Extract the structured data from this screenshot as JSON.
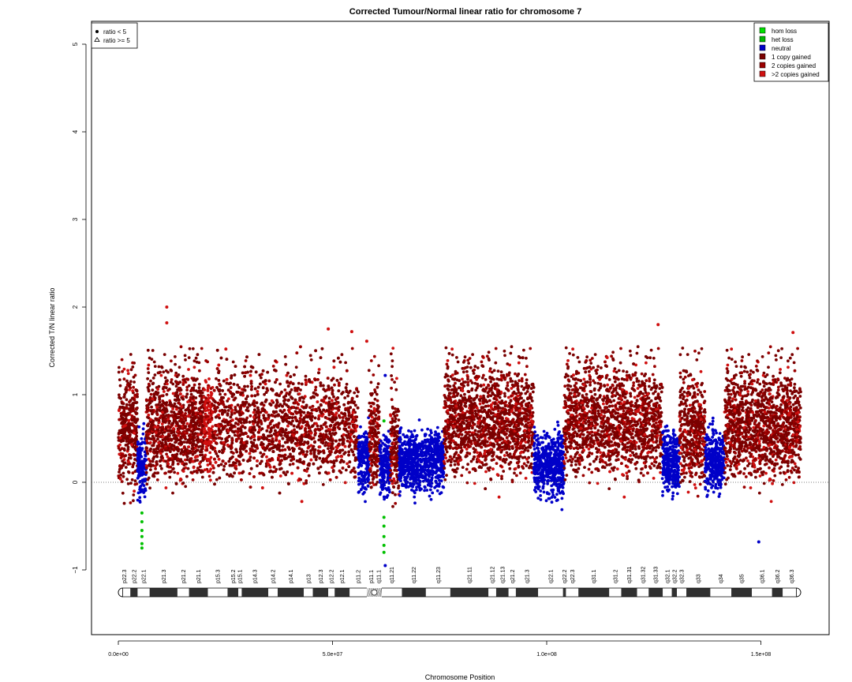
{
  "chart_data": {
    "type": "scatter",
    "title": "Corrected Tumour/Normal linear ratio for chromosome  7",
    "xlabel": "Chromosome Position",
    "ylabel": "Corrected T/N linear ratio",
    "xlim": [
      0,
      162000000
    ],
    "ylim": [
      -1.8,
      5.25
    ],
    "x_ticks": [
      {
        "value": 0,
        "label": "0.0e+00"
      },
      {
        "value": 50000000,
        "label": "5.0e+07"
      },
      {
        "value": 100000000,
        "label": "1.0e+08"
      },
      {
        "value": 150000000,
        "label": "1.5e+08"
      }
    ],
    "y_ticks": [
      {
        "value": -1,
        "label": "−1"
      },
      {
        "value": 0,
        "label": "0"
      },
      {
        "value": 1,
        "label": "1"
      },
      {
        "value": 2,
        "label": "2"
      },
      {
        "value": 3,
        "label": "3"
      },
      {
        "value": 4,
        "label": "4"
      },
      {
        "value": 5,
        "label": "5"
      }
    ],
    "reference_line": {
      "y": 0,
      "style": "dotted"
    },
    "shape_legend": {
      "placement": "top-left",
      "items": [
        {
          "symbol": "dot",
          "label": "ratio < 5"
        },
        {
          "symbol": "triangle",
          "label": "ratio >= 5"
        }
      ]
    },
    "legend": {
      "placement": "top-right",
      "items": [
        {
          "label": "hom loss",
          "color": "#00e000"
        },
        {
          "label": "het loss",
          "color": "#00b800"
        },
        {
          "label": "neutral",
          "color": "#0000c8"
        },
        {
          "label": "1 copy gained",
          "color": "#7a0000"
        },
        {
          "label": "2 copies gained",
          "color": "#9a0000"
        },
        {
          "label": ">2 copies gained",
          "color": "#d01010"
        }
      ]
    },
    "colors": {
      "loss": "#00c000",
      "neutral": "#0000c8",
      "gain1": "#7a0000",
      "gain2": "#9a0000",
      "gain3": "#d01010"
    },
    "segments": [
      {
        "start": 0,
        "end": 4500000,
        "state": "gain1",
        "mean": 0.55
      },
      {
        "start": 4500000,
        "end": 6500000,
        "state": "neutral",
        "mean": 0.2
      },
      {
        "start": 6500000,
        "end": 20000000,
        "state": "gain1",
        "mean": 0.6
      },
      {
        "start": 20000000,
        "end": 22000000,
        "state": "gain3",
        "mean": 0.65
      },
      {
        "start": 22000000,
        "end": 56000000,
        "state": "gain1",
        "mean": 0.6
      },
      {
        "start": 56000000,
        "end": 58500000,
        "state": "neutral",
        "mean": 0.25
      },
      {
        "start": 58500000,
        "end": 61000000,
        "state": "gain1",
        "mean": 0.5
      },
      {
        "start": 61000000,
        "end": 63500000,
        "state": "neutral",
        "mean": 0.2
      },
      {
        "start": 63500000,
        "end": 65500000,
        "state": "gain1",
        "mean": 0.4
      },
      {
        "start": 65500000,
        "end": 76000000,
        "state": "neutral",
        "mean": 0.25
      },
      {
        "start": 76000000,
        "end": 97000000,
        "state": "gain1",
        "mean": 0.65
      },
      {
        "start": 97000000,
        "end": 104000000,
        "state": "neutral",
        "mean": 0.2
      },
      {
        "start": 104000000,
        "end": 127000000,
        "state": "gain1",
        "mean": 0.65
      },
      {
        "start": 127000000,
        "end": 131000000,
        "state": "neutral",
        "mean": 0.25
      },
      {
        "start": 131000000,
        "end": 137000000,
        "state": "gain1",
        "mean": 0.55
      },
      {
        "start": 137000000,
        "end": 141500000,
        "state": "neutral",
        "mean": 0.25
      },
      {
        "start": 141500000,
        "end": 159300000,
        "state": "gain1",
        "mean": 0.6
      }
    ],
    "loss_points": [
      {
        "x": 5500000,
        "y": -0.35
      },
      {
        "x": 5500000,
        "y": -0.45
      },
      {
        "x": 5500000,
        "y": -0.55
      },
      {
        "x": 5500000,
        "y": -0.62
      },
      {
        "x": 5500000,
        "y": -0.7
      },
      {
        "x": 5500000,
        "y": -0.75
      },
      {
        "x": 62000000,
        "y": -0.4
      },
      {
        "x": 62000000,
        "y": -0.5
      },
      {
        "x": 62000000,
        "y": -0.62
      },
      {
        "x": 62000000,
        "y": -0.72
      },
      {
        "x": 62000000,
        "y": -0.8
      },
      {
        "x": 62000000,
        "y": 0.7
      }
    ],
    "outlier_points": [
      {
        "x": 11300000,
        "y": 2.0
      },
      {
        "x": 11300000,
        "y": 1.82
      },
      {
        "x": 49000000,
        "y": 1.75
      },
      {
        "x": 54500000,
        "y": 1.72
      },
      {
        "x": 58000000,
        "y": 1.61
      },
      {
        "x": 126000000,
        "y": 1.8
      },
      {
        "x": 157500000,
        "y": 1.71
      },
      {
        "x": 149500000,
        "y": -0.68
      },
      {
        "x": 62300000,
        "y": -0.95
      },
      {
        "x": 62300000,
        "y": 1.22
      }
    ],
    "ideogram": {
      "length": 159300000,
      "centromere": [
        58000000,
        61500000
      ],
      "bands": [
        {
          "start": 0,
          "end": 2800000,
          "stain": "gneg",
          "label": "p22.3"
        },
        {
          "start": 2800000,
          "end": 4500000,
          "stain": "gpos",
          "label": "p22.2"
        },
        {
          "start": 4500000,
          "end": 7300000,
          "stain": "gneg",
          "label": "p22.1"
        },
        {
          "start": 7300000,
          "end": 13800000,
          "stain": "gpos",
          "label": "p21.3"
        },
        {
          "start": 13800000,
          "end": 16500000,
          "stain": "gneg",
          "label": "p21.2"
        },
        {
          "start": 16500000,
          "end": 20900000,
          "stain": "gpos",
          "label": "p21.1"
        },
        {
          "start": 20900000,
          "end": 25500000,
          "stain": "gneg",
          "label": "p15.3"
        },
        {
          "start": 25500000,
          "end": 28000000,
          "stain": "gpos",
          "label": "p15.2"
        },
        {
          "start": 28000000,
          "end": 28800000,
          "stain": "gneg",
          "label": "p15.1"
        },
        {
          "start": 28800000,
          "end": 35000000,
          "stain": "gpos",
          "label": "p14.3"
        },
        {
          "start": 35000000,
          "end": 37200000,
          "stain": "gneg",
          "label": "p14.2"
        },
        {
          "start": 37200000,
          "end": 43300000,
          "stain": "gpos",
          "label": "p14.1"
        },
        {
          "start": 43300000,
          "end": 45400000,
          "stain": "gneg",
          "label": "p13"
        },
        {
          "start": 45400000,
          "end": 49000000,
          "stain": "gpos",
          "label": "p12.3"
        },
        {
          "start": 49000000,
          "end": 50500000,
          "stain": "gneg",
          "label": "p12.2"
        },
        {
          "start": 50500000,
          "end": 54000000,
          "stain": "gpos",
          "label": "p12.1"
        },
        {
          "start": 54000000,
          "end": 58000000,
          "stain": "gneg",
          "label": "p11.2"
        },
        {
          "start": 58000000,
          "end": 60000000,
          "stain": "acen",
          "label": "p11.1"
        },
        {
          "start": 60000000,
          "end": 61500000,
          "stain": "acen",
          "label": "q11.1"
        },
        {
          "start": 61500000,
          "end": 66200000,
          "stain": "gneg",
          "label": "q11.21"
        },
        {
          "start": 66200000,
          "end": 71800000,
          "stain": "gpos",
          "label": "q11.22"
        },
        {
          "start": 71800000,
          "end": 77500000,
          "stain": "gneg",
          "label": "q11.23"
        },
        {
          "start": 77500000,
          "end": 86400000,
          "stain": "gpos",
          "label": "q21.11"
        },
        {
          "start": 86400000,
          "end": 88200000,
          "stain": "gneg",
          "label": "q21.12"
        },
        {
          "start": 88200000,
          "end": 91100000,
          "stain": "gpos",
          "label": "q21.13"
        },
        {
          "start": 91100000,
          "end": 92800000,
          "stain": "gneg",
          "label": "q21.2"
        },
        {
          "start": 92800000,
          "end": 98000000,
          "stain": "gpos",
          "label": "q21.3"
        },
        {
          "start": 98000000,
          "end": 103800000,
          "stain": "gneg",
          "label": "q22.1"
        },
        {
          "start": 103800000,
          "end": 104500000,
          "stain": "gpos",
          "label": "q22.2"
        },
        {
          "start": 104500000,
          "end": 107400000,
          "stain": "gneg",
          "label": "q22.3"
        },
        {
          "start": 107400000,
          "end": 114600000,
          "stain": "gpos",
          "label": "q31.1"
        },
        {
          "start": 114600000,
          "end": 117400000,
          "stain": "gneg",
          "label": "q31.2"
        },
        {
          "start": 117400000,
          "end": 121100000,
          "stain": "gpos",
          "label": "q31.31"
        },
        {
          "start": 121100000,
          "end": 123800000,
          "stain": "gneg",
          "label": "q31.32"
        },
        {
          "start": 123800000,
          "end": 127100000,
          "stain": "gpos",
          "label": "q31.33"
        },
        {
          "start": 127100000,
          "end": 129200000,
          "stain": "gneg",
          "label": "q32.1"
        },
        {
          "start": 129200000,
          "end": 130400000,
          "stain": "gpos",
          "label": "q32.2"
        },
        {
          "start": 130400000,
          "end": 132600000,
          "stain": "gneg",
          "label": "q32.3"
        },
        {
          "start": 132600000,
          "end": 138200000,
          "stain": "gpos",
          "label": "q33"
        },
        {
          "start": 138200000,
          "end": 143100000,
          "stain": "gneg",
          "label": "q34"
        },
        {
          "start": 143100000,
          "end": 147900000,
          "stain": "gpos",
          "label": "q35"
        },
        {
          "start": 147900000,
          "end": 152600000,
          "stain": "gneg",
          "label": "q36.1"
        },
        {
          "start": 152600000,
          "end": 155100000,
          "stain": "gpos",
          "label": "q36.2"
        },
        {
          "start": 155100000,
          "end": 159300000,
          "stain": "gneg",
          "label": "q36.3"
        }
      ]
    }
  }
}
